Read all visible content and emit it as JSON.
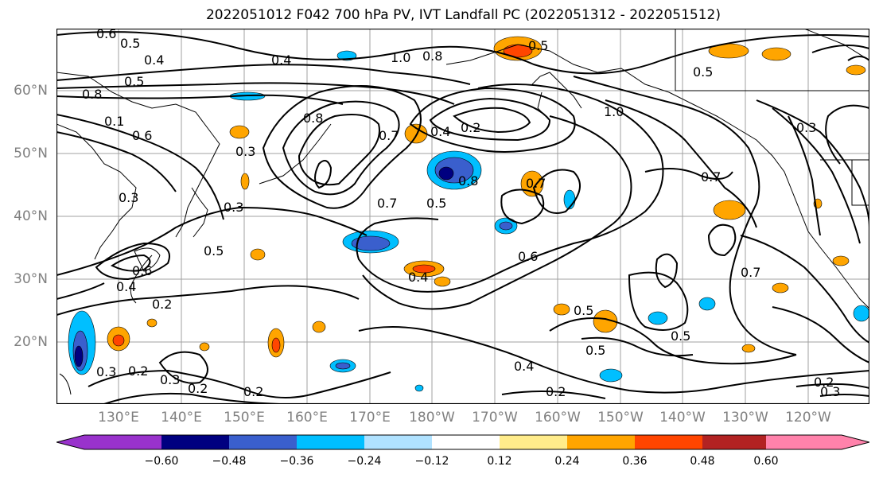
{
  "title": "2022051012 F042 700 hPa PV, IVT Landfall PC (2022051312 - 2022051512)",
  "lat_labels": [
    "60°N",
    "50°N",
    "40°N",
    "30°N",
    "20°N"
  ],
  "lon_labels": [
    "130°E",
    "140°E",
    "150°E",
    "160°E",
    "170°E",
    "180°W",
    "170°W",
    "160°W",
    "150°W",
    "140°W",
    "130°W",
    "120°W"
  ],
  "colorbar": {
    "ticks": [
      "−0.60",
      "−0.48",
      "−0.36",
      "−0.24",
      "−0.12",
      "0.12",
      "0.24",
      "0.36",
      "0.48",
      "0.60"
    ],
    "colors": [
      "#9932cc",
      "#000080",
      "#3a5fcd",
      "#00bfff",
      "#b0e2ff",
      "#ffffff",
      "#ffec8b",
      "#ffa500",
      "#ff4500",
      "#b22222",
      "#ff82ab"
    ]
  },
  "contour_labels": [
    "0.6",
    "0.5",
    "0.4",
    "0.5",
    "0.8",
    "0.4",
    "1.0",
    "0.8",
    "0.5",
    "0.5",
    "0.7",
    "0.6",
    "0.1",
    "0.8",
    "0.3",
    "0.2",
    "0.7",
    "0.4",
    "1.0",
    "0.8",
    "0.7",
    "0.5",
    "0.6",
    "0.7",
    "0.3",
    "0.3",
    "0.5",
    "0.4",
    "0.6",
    "0.7",
    "0.3",
    "0.4",
    "0.5",
    "0.2",
    "0.3",
    "0.2",
    "0.3",
    "0.2",
    "0.2",
    "0.4",
    "0.5",
    "0.5",
    "0.2",
    "0.2",
    "0.3"
  ]
}
